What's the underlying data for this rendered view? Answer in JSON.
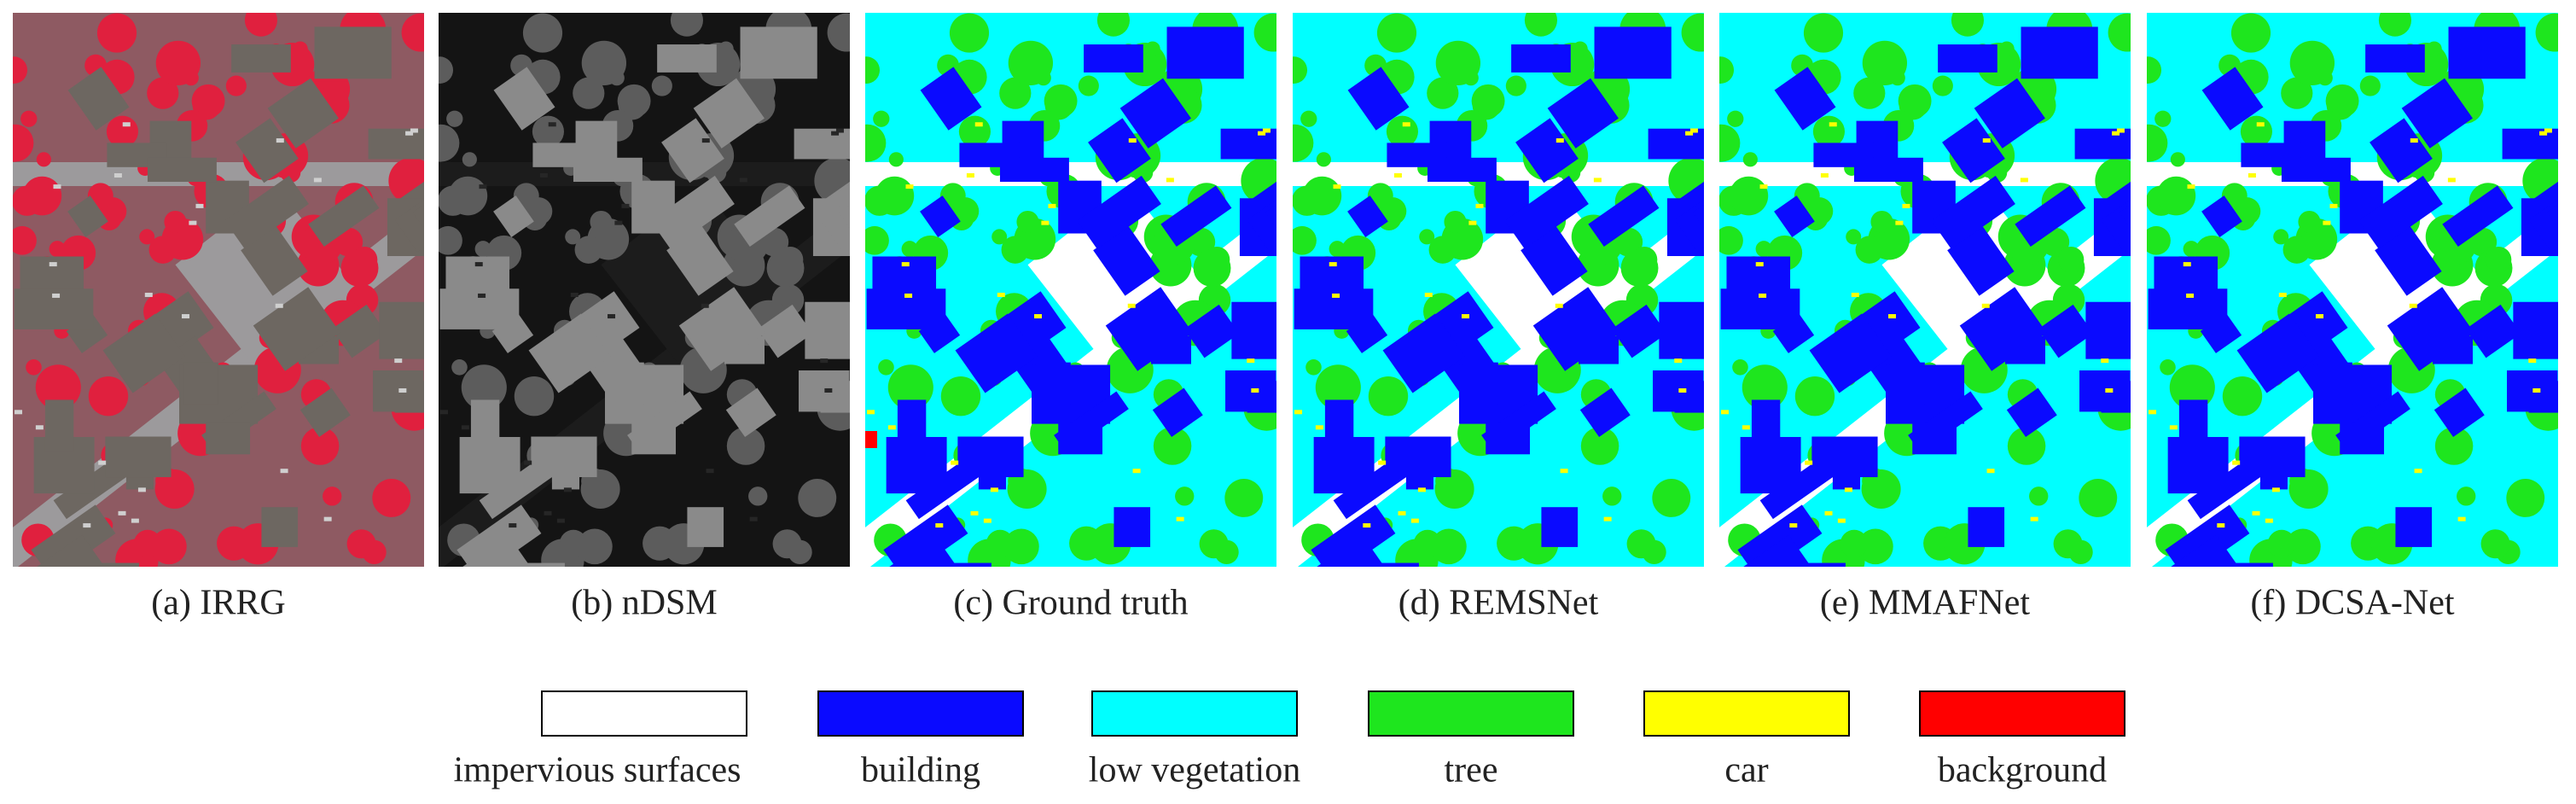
{
  "panels": [
    {
      "caption": "(a) IRRG"
    },
    {
      "caption": "(b) nDSM"
    },
    {
      "caption": "(c) Ground truth"
    },
    {
      "caption": "(d) REMSNet"
    },
    {
      "caption": "(e) MMAFNet"
    },
    {
      "caption": "(f) DCSA-Net"
    }
  ],
  "legend": [
    {
      "label": "impervious surfaces",
      "color": "#ffffff"
    },
    {
      "label": "building",
      "color": "#0a0aff"
    },
    {
      "label": "low vegetation",
      "color": "#00ffff"
    },
    {
      "label": "tree",
      "color": "#1ee61e"
    },
    {
      "label": "car",
      "color": "#ffff00"
    },
    {
      "label": "background",
      "color": "#ff0000"
    }
  ]
}
